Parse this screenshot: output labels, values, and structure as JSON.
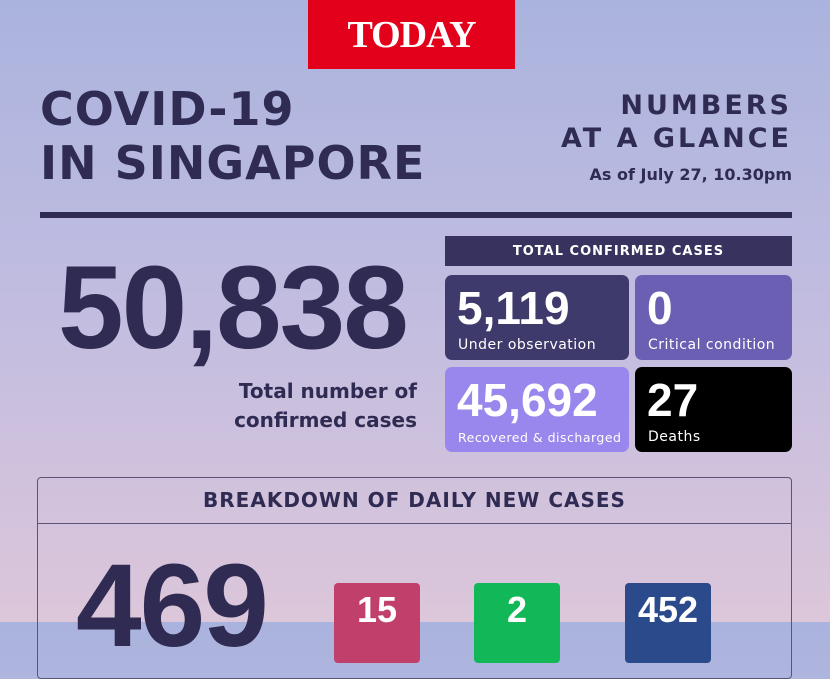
{
  "logo": "TODAY",
  "title": [
    "COVID-19",
    "IN SINGAPORE"
  ],
  "subtitle": [
    "NUMBERS",
    "AT A GLANCE"
  ],
  "as_of": "As of July 27, 10.30pm",
  "total": {
    "value": "50,838",
    "label": [
      "Total number of",
      "confirmed cases"
    ]
  },
  "confirmed_cases": {
    "header": "TOTAL CONFIRMED CASES",
    "items": [
      {
        "value": "5,119",
        "label": "Under observation"
      },
      {
        "value": "0",
        "label": "Critical condition"
      },
      {
        "value": "45,692",
        "label": "Recovered & discharged"
      },
      {
        "value": "27",
        "label": "Deaths"
      }
    ]
  },
  "breakdown": {
    "header": "BREAKDOWN OF DAILY NEW CASES",
    "total": "469",
    "items": [
      "15",
      "2",
      "452"
    ]
  }
}
